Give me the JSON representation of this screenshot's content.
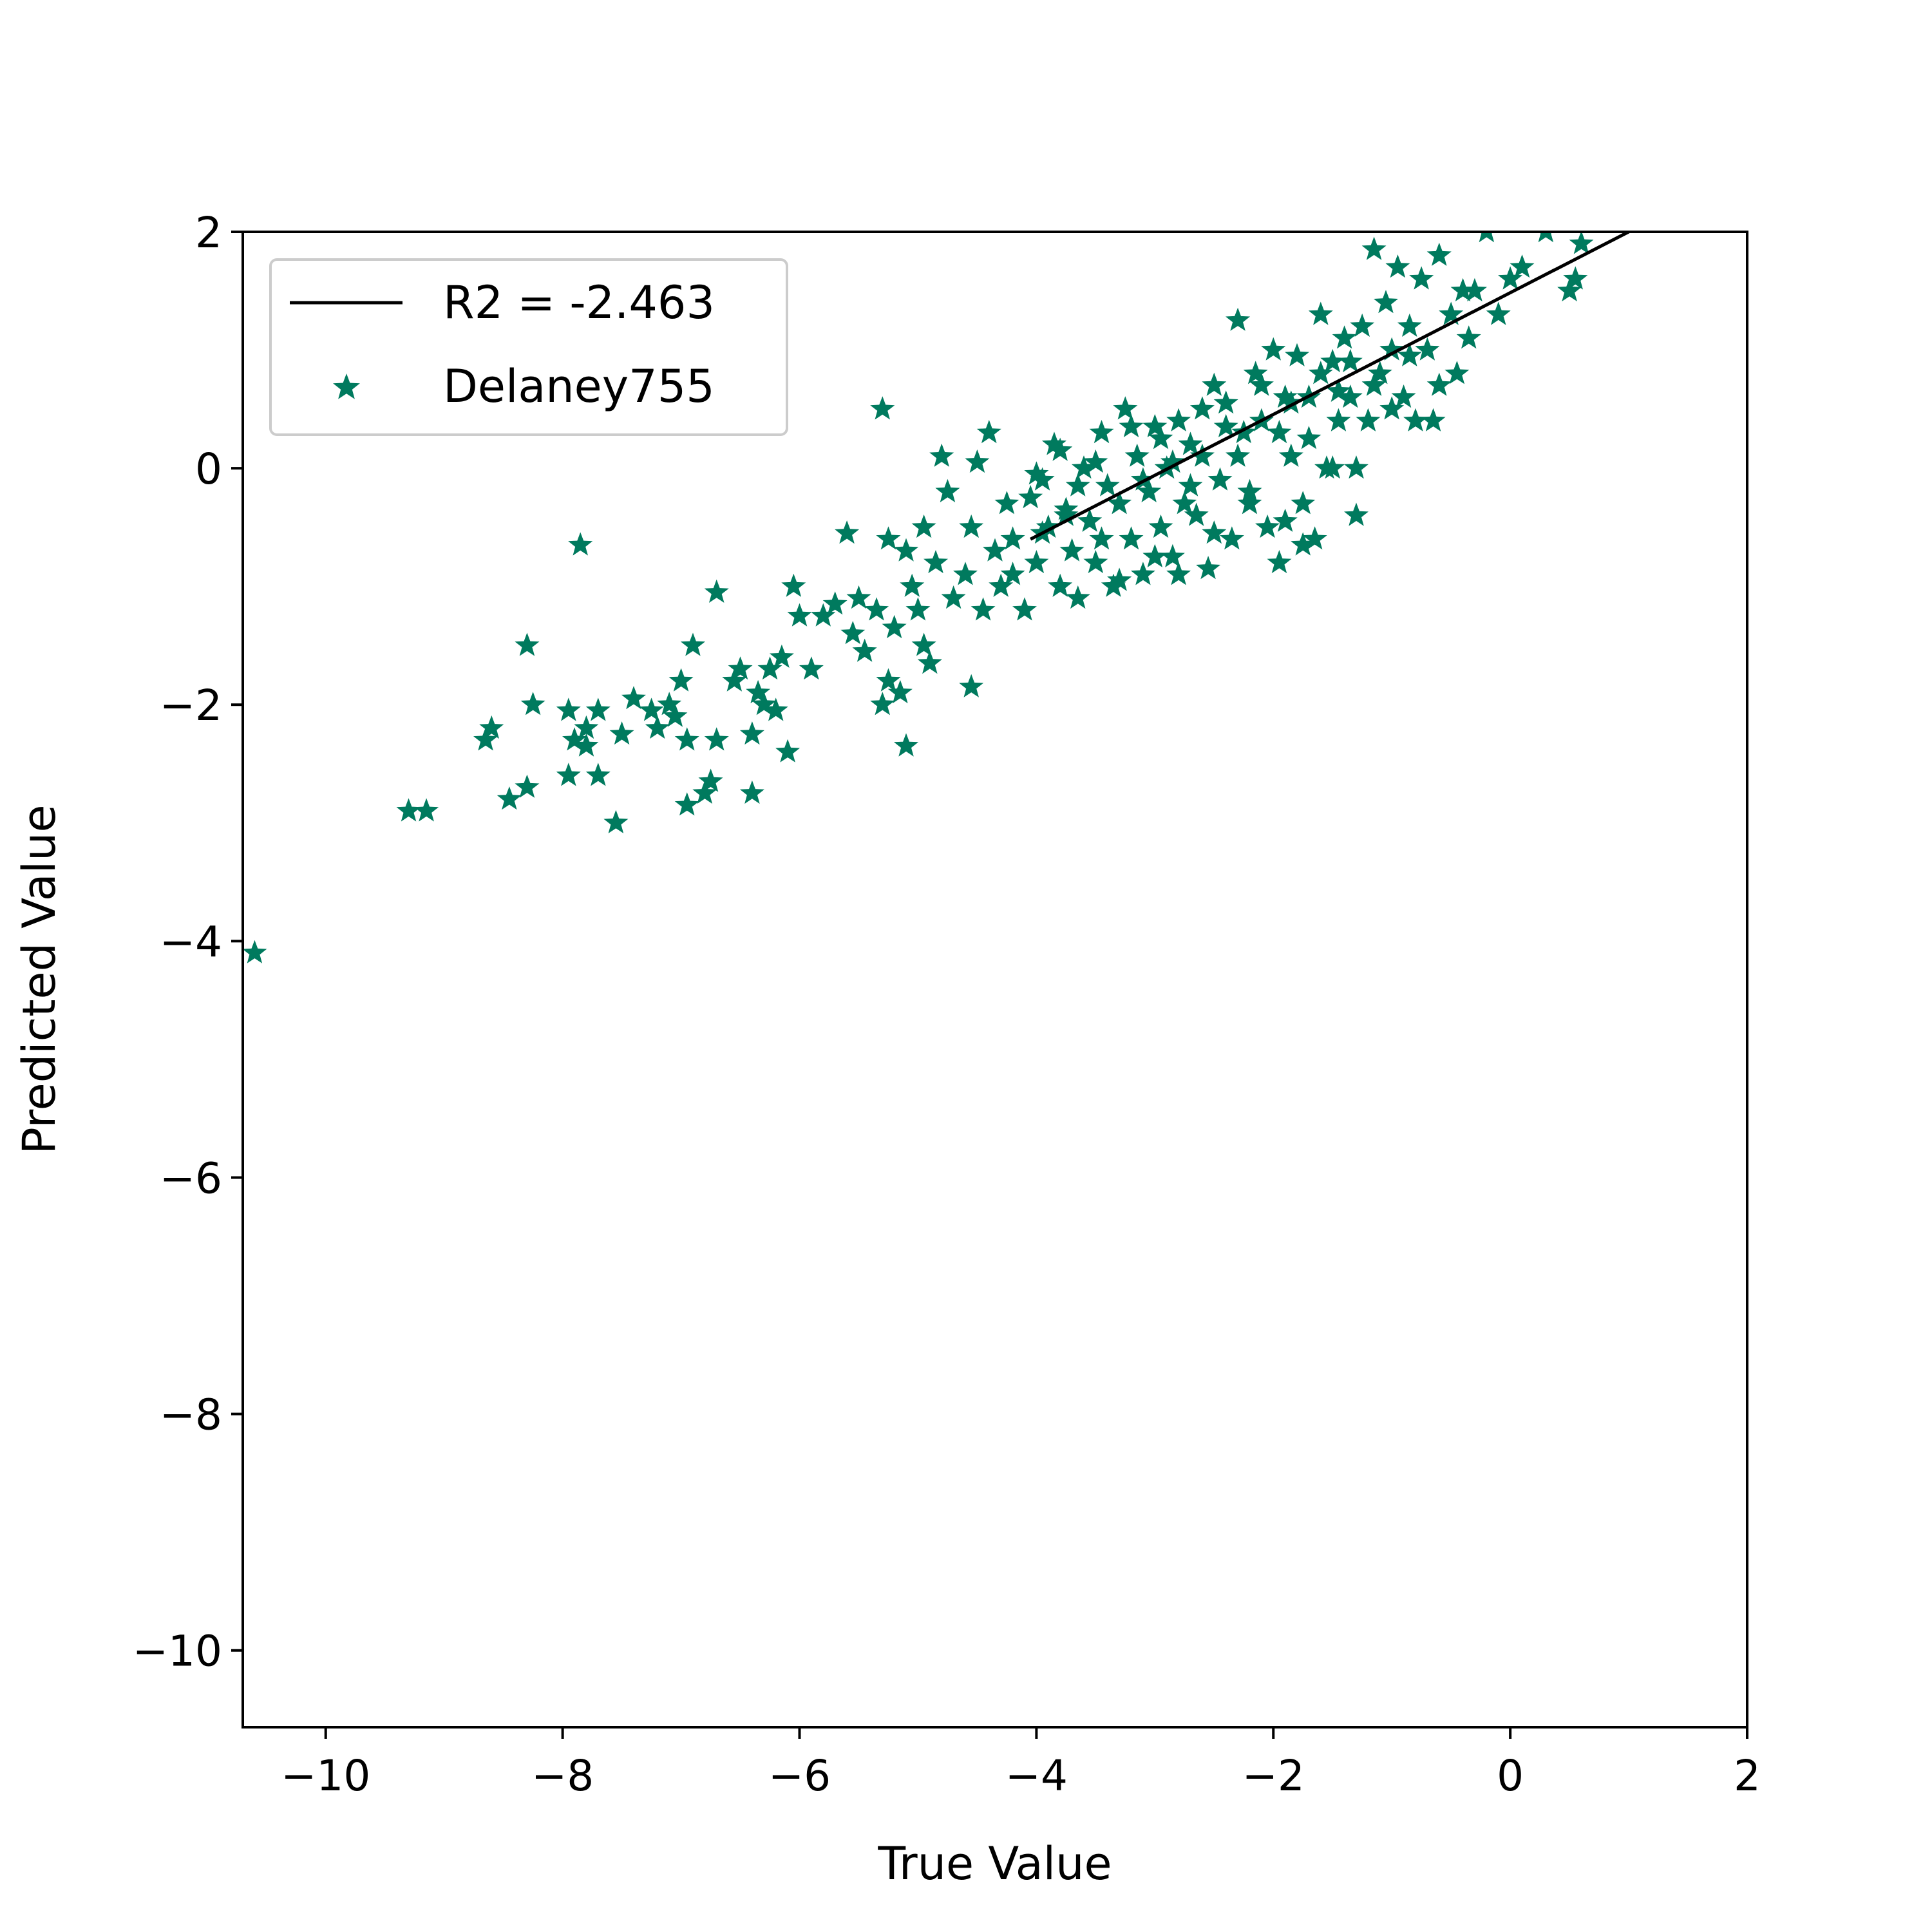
{
  "chart_data": {
    "type": "scatter",
    "xlabel": "True Value",
    "ylabel": "Predicted Value",
    "xlim": [
      -10.7,
      2
    ],
    "ylim": [
      -10.65,
      2
    ],
    "xticks": [
      -10,
      -8,
      -6,
      -4,
      -2,
      0,
      2
    ],
    "yticks": [
      -10,
      -8,
      -6,
      -4,
      -2,
      0,
      2
    ],
    "grid": false,
    "legend_position": "top-left",
    "fit_line": {
      "label": "R2 = -2.463",
      "color": "#000000",
      "x": [
        -4.05,
        1.0
      ],
      "y": [
        -0.6,
        2.0
      ]
    },
    "series": [
      {
        "name": "Delaney755",
        "marker": "star",
        "color": "#007a5e",
        "points": [
          [
            -10.6,
            -4.1
          ],
          [
            -9.3,
            -2.9
          ],
          [
            -9.15,
            -2.9
          ],
          [
            -8.65,
            -2.3
          ],
          [
            -8.6,
            -2.2
          ],
          [
            -8.45,
            -2.8
          ],
          [
            -8.3,
            -2.7
          ],
          [
            -8.3,
            -1.5
          ],
          [
            -8.25,
            -2.0
          ],
          [
            -7.95,
            -2.05
          ],
          [
            -7.95,
            -2.6
          ],
          [
            -7.9,
            -2.3
          ],
          [
            -7.85,
            -0.65
          ],
          [
            -7.8,
            -2.2
          ],
          [
            -7.8,
            -2.35
          ],
          [
            -7.7,
            -2.05
          ],
          [
            -7.7,
            -2.6
          ],
          [
            -7.55,
            -3.0
          ],
          [
            -7.5,
            -2.25
          ],
          [
            -7.4,
            -1.95
          ],
          [
            -7.25,
            -2.05
          ],
          [
            -7.2,
            -2.2
          ],
          [
            -7.1,
            -2.0
          ],
          [
            -7.05,
            -2.1
          ],
          [
            -7.0,
            -1.8
          ],
          [
            -6.95,
            -2.3
          ],
          [
            -6.95,
            -2.85
          ],
          [
            -6.9,
            -1.5
          ],
          [
            -6.8,
            -2.75
          ],
          [
            -6.75,
            -2.65
          ],
          [
            -6.7,
            -1.05
          ],
          [
            -6.7,
            -2.3
          ],
          [
            -6.55,
            -1.8
          ],
          [
            -6.5,
            -1.7
          ],
          [
            -6.4,
            -2.25
          ],
          [
            -6.4,
            -2.75
          ],
          [
            -6.35,
            -1.9
          ],
          [
            -6.3,
            -2.0
          ],
          [
            -6.25,
            -1.7
          ],
          [
            -6.2,
            -2.05
          ],
          [
            -6.15,
            -1.6
          ],
          [
            -6.1,
            -2.4
          ],
          [
            -6.05,
            -1.0
          ],
          [
            -6.0,
            -1.25
          ],
          [
            -5.9,
            -1.7
          ],
          [
            -5.8,
            -1.25
          ],
          [
            -5.7,
            -1.15
          ],
          [
            -5.6,
            -0.55
          ],
          [
            -5.55,
            -1.4
          ],
          [
            -5.5,
            -1.1
          ],
          [
            -5.45,
            -1.55
          ],
          [
            -5.35,
            -1.2
          ],
          [
            -5.3,
            0.5
          ],
          [
            -5.3,
            -2.0
          ],
          [
            -5.25,
            -0.6
          ],
          [
            -5.25,
            -1.8
          ],
          [
            -5.2,
            -1.35
          ],
          [
            -5.15,
            -1.9
          ],
          [
            -5.1,
            -0.7
          ],
          [
            -5.1,
            -2.35
          ],
          [
            -5.05,
            -1.0
          ],
          [
            -5.0,
            -1.2
          ],
          [
            -4.95,
            -0.5
          ],
          [
            -4.95,
            -1.5
          ],
          [
            -4.9,
            -1.65
          ],
          [
            -4.85,
            -0.8
          ],
          [
            -4.8,
            0.1
          ],
          [
            -4.75,
            -0.2
          ],
          [
            -4.7,
            -1.1
          ],
          [
            -4.6,
            -0.9
          ],
          [
            -4.55,
            -0.5
          ],
          [
            -4.55,
            -1.85
          ],
          [
            -4.5,
            0.05
          ],
          [
            -4.45,
            -1.2
          ],
          [
            -4.4,
            0.3
          ],
          [
            -4.35,
            -0.7
          ],
          [
            -4.3,
            -1.0
          ],
          [
            -4.25,
            -0.3
          ],
          [
            -4.2,
            -0.6
          ],
          [
            -4.1,
            -1.2
          ],
          [
            -4.05,
            -0.25
          ],
          [
            -4.0,
            -0.8
          ],
          [
            -3.95,
            -0.1
          ],
          [
            -3.9,
            -0.5
          ],
          [
            -3.85,
            0.2
          ],
          [
            -3.8,
            -1.0
          ],
          [
            -3.75,
            -0.35
          ],
          [
            -3.7,
            -0.7
          ],
          [
            -3.65,
            -1.1
          ],
          [
            -3.6,
            0.0
          ],
          [
            -3.55,
            -0.45
          ],
          [
            -3.5,
            -0.8
          ],
          [
            -3.45,
            0.3
          ],
          [
            -3.4,
            -0.15
          ],
          [
            -3.35,
            -1.0
          ],
          [
            -3.3,
            -0.3
          ],
          [
            -3.25,
            0.5
          ],
          [
            -3.2,
            -0.6
          ],
          [
            -3.15,
            0.1
          ],
          [
            -3.1,
            -0.9
          ],
          [
            -3.05,
            -0.2
          ],
          [
            -3.0,
            0.35
          ],
          [
            -2.95,
            -0.5
          ],
          [
            -2.9,
            0.0
          ],
          [
            -2.85,
            -0.75
          ],
          [
            -2.8,
            0.4
          ],
          [
            -2.75,
            -0.3
          ],
          [
            -2.7,
            0.2
          ],
          [
            -2.65,
            -0.4
          ],
          [
            -2.6,
            0.1
          ],
          [
            -2.55,
            -0.85
          ],
          [
            -2.5,
            0.7
          ],
          [
            -2.45,
            -0.1
          ],
          [
            -2.4,
            0.35
          ],
          [
            -2.35,
            -0.6
          ],
          [
            -2.3,
            1.25
          ],
          [
            -2.25,
            0.3
          ],
          [
            -2.2,
            -0.2
          ],
          [
            -2.15,
            0.8
          ],
          [
            -2.1,
            0.4
          ],
          [
            -2.05,
            -0.5
          ],
          [
            -2.0,
            1.0
          ],
          [
            -1.95,
            -0.8
          ],
          [
            -1.9,
            0.6
          ],
          [
            -1.85,
            0.1
          ],
          [
            -1.8,
            0.95
          ],
          [
            -1.75,
            -0.3
          ],
          [
            -1.7,
            0.6
          ],
          [
            -1.65,
            -0.6
          ],
          [
            -1.6,
            1.3
          ],
          [
            -1.55,
            0.0
          ],
          [
            -1.5,
            0.9
          ],
          [
            -1.45,
            0.4
          ],
          [
            -1.4,
            1.1
          ],
          [
            -1.35,
            0.6
          ],
          [
            -1.3,
            0.0
          ],
          [
            -1.25,
            1.2
          ],
          [
            -1.2,
            0.4
          ],
          [
            -1.15,
            1.85
          ],
          [
            -1.1,
            0.8
          ],
          [
            -1.05,
            1.4
          ],
          [
            -1.0,
            1.0
          ],
          [
            -0.95,
            1.7
          ],
          [
            -0.9,
            0.6
          ],
          [
            -0.85,
            1.2
          ],
          [
            -0.8,
            0.4
          ],
          [
            -0.75,
            1.6
          ],
          [
            -0.7,
            1.0
          ],
          [
            -0.65,
            0.4
          ],
          [
            -0.6,
            1.8
          ],
          [
            -0.5,
            1.3
          ],
          [
            -0.45,
            0.8
          ],
          [
            -0.4,
            1.5
          ],
          [
            -0.35,
            1.1
          ],
          [
            -0.3,
            1.5
          ],
          [
            -0.2,
            2.0
          ],
          [
            -0.1,
            1.3
          ],
          [
            0.0,
            1.6
          ],
          [
            0.1,
            1.7
          ],
          [
            0.3,
            2.0
          ],
          [
            0.5,
            1.5
          ],
          [
            0.55,
            1.6
          ],
          [
            0.6,
            1.9
          ],
          [
            -1.3,
            -0.4
          ],
          [
            -1.5,
            0.0
          ],
          [
            -1.75,
            -0.65
          ],
          [
            -1.9,
            -0.45
          ],
          [
            -2.2,
            -0.3
          ],
          [
            -2.5,
            -0.55
          ],
          [
            -2.8,
            -0.9
          ],
          [
            -3.0,
            -0.75
          ],
          [
            -3.3,
            -0.95
          ],
          [
            -3.45,
            -0.6
          ],
          [
            -3.65,
            -0.15
          ],
          [
            -3.8,
            0.15
          ],
          [
            -3.95,
            -0.55
          ],
          [
            -4.2,
            -0.9
          ],
          [
            -3.2,
            0.35
          ],
          [
            -2.95,
            0.25
          ],
          [
            -2.6,
            0.5
          ],
          [
            -2.4,
            0.55
          ],
          [
            -2.1,
            0.7
          ],
          [
            -1.85,
            0.55
          ],
          [
            -1.6,
            0.8
          ],
          [
            -1.35,
            0.9
          ],
          [
            -1.0,
            0.5
          ],
          [
            -0.85,
            0.95
          ],
          [
            -0.6,
            0.7
          ],
          [
            -2.7,
            -0.15
          ],
          [
            -2.3,
            0.1
          ],
          [
            -1.95,
            0.3
          ],
          [
            -1.7,
            0.25
          ],
          [
            -1.45,
            0.65
          ],
          [
            -1.15,
            0.7
          ],
          [
            -3.5,
            0.05
          ],
          [
            -3.1,
            -0.1
          ],
          [
            -2.85,
            0.05
          ],
          [
            -3.75,
            -0.4
          ],
          [
            -4.0,
            -0.05
          ]
        ]
      }
    ]
  }
}
